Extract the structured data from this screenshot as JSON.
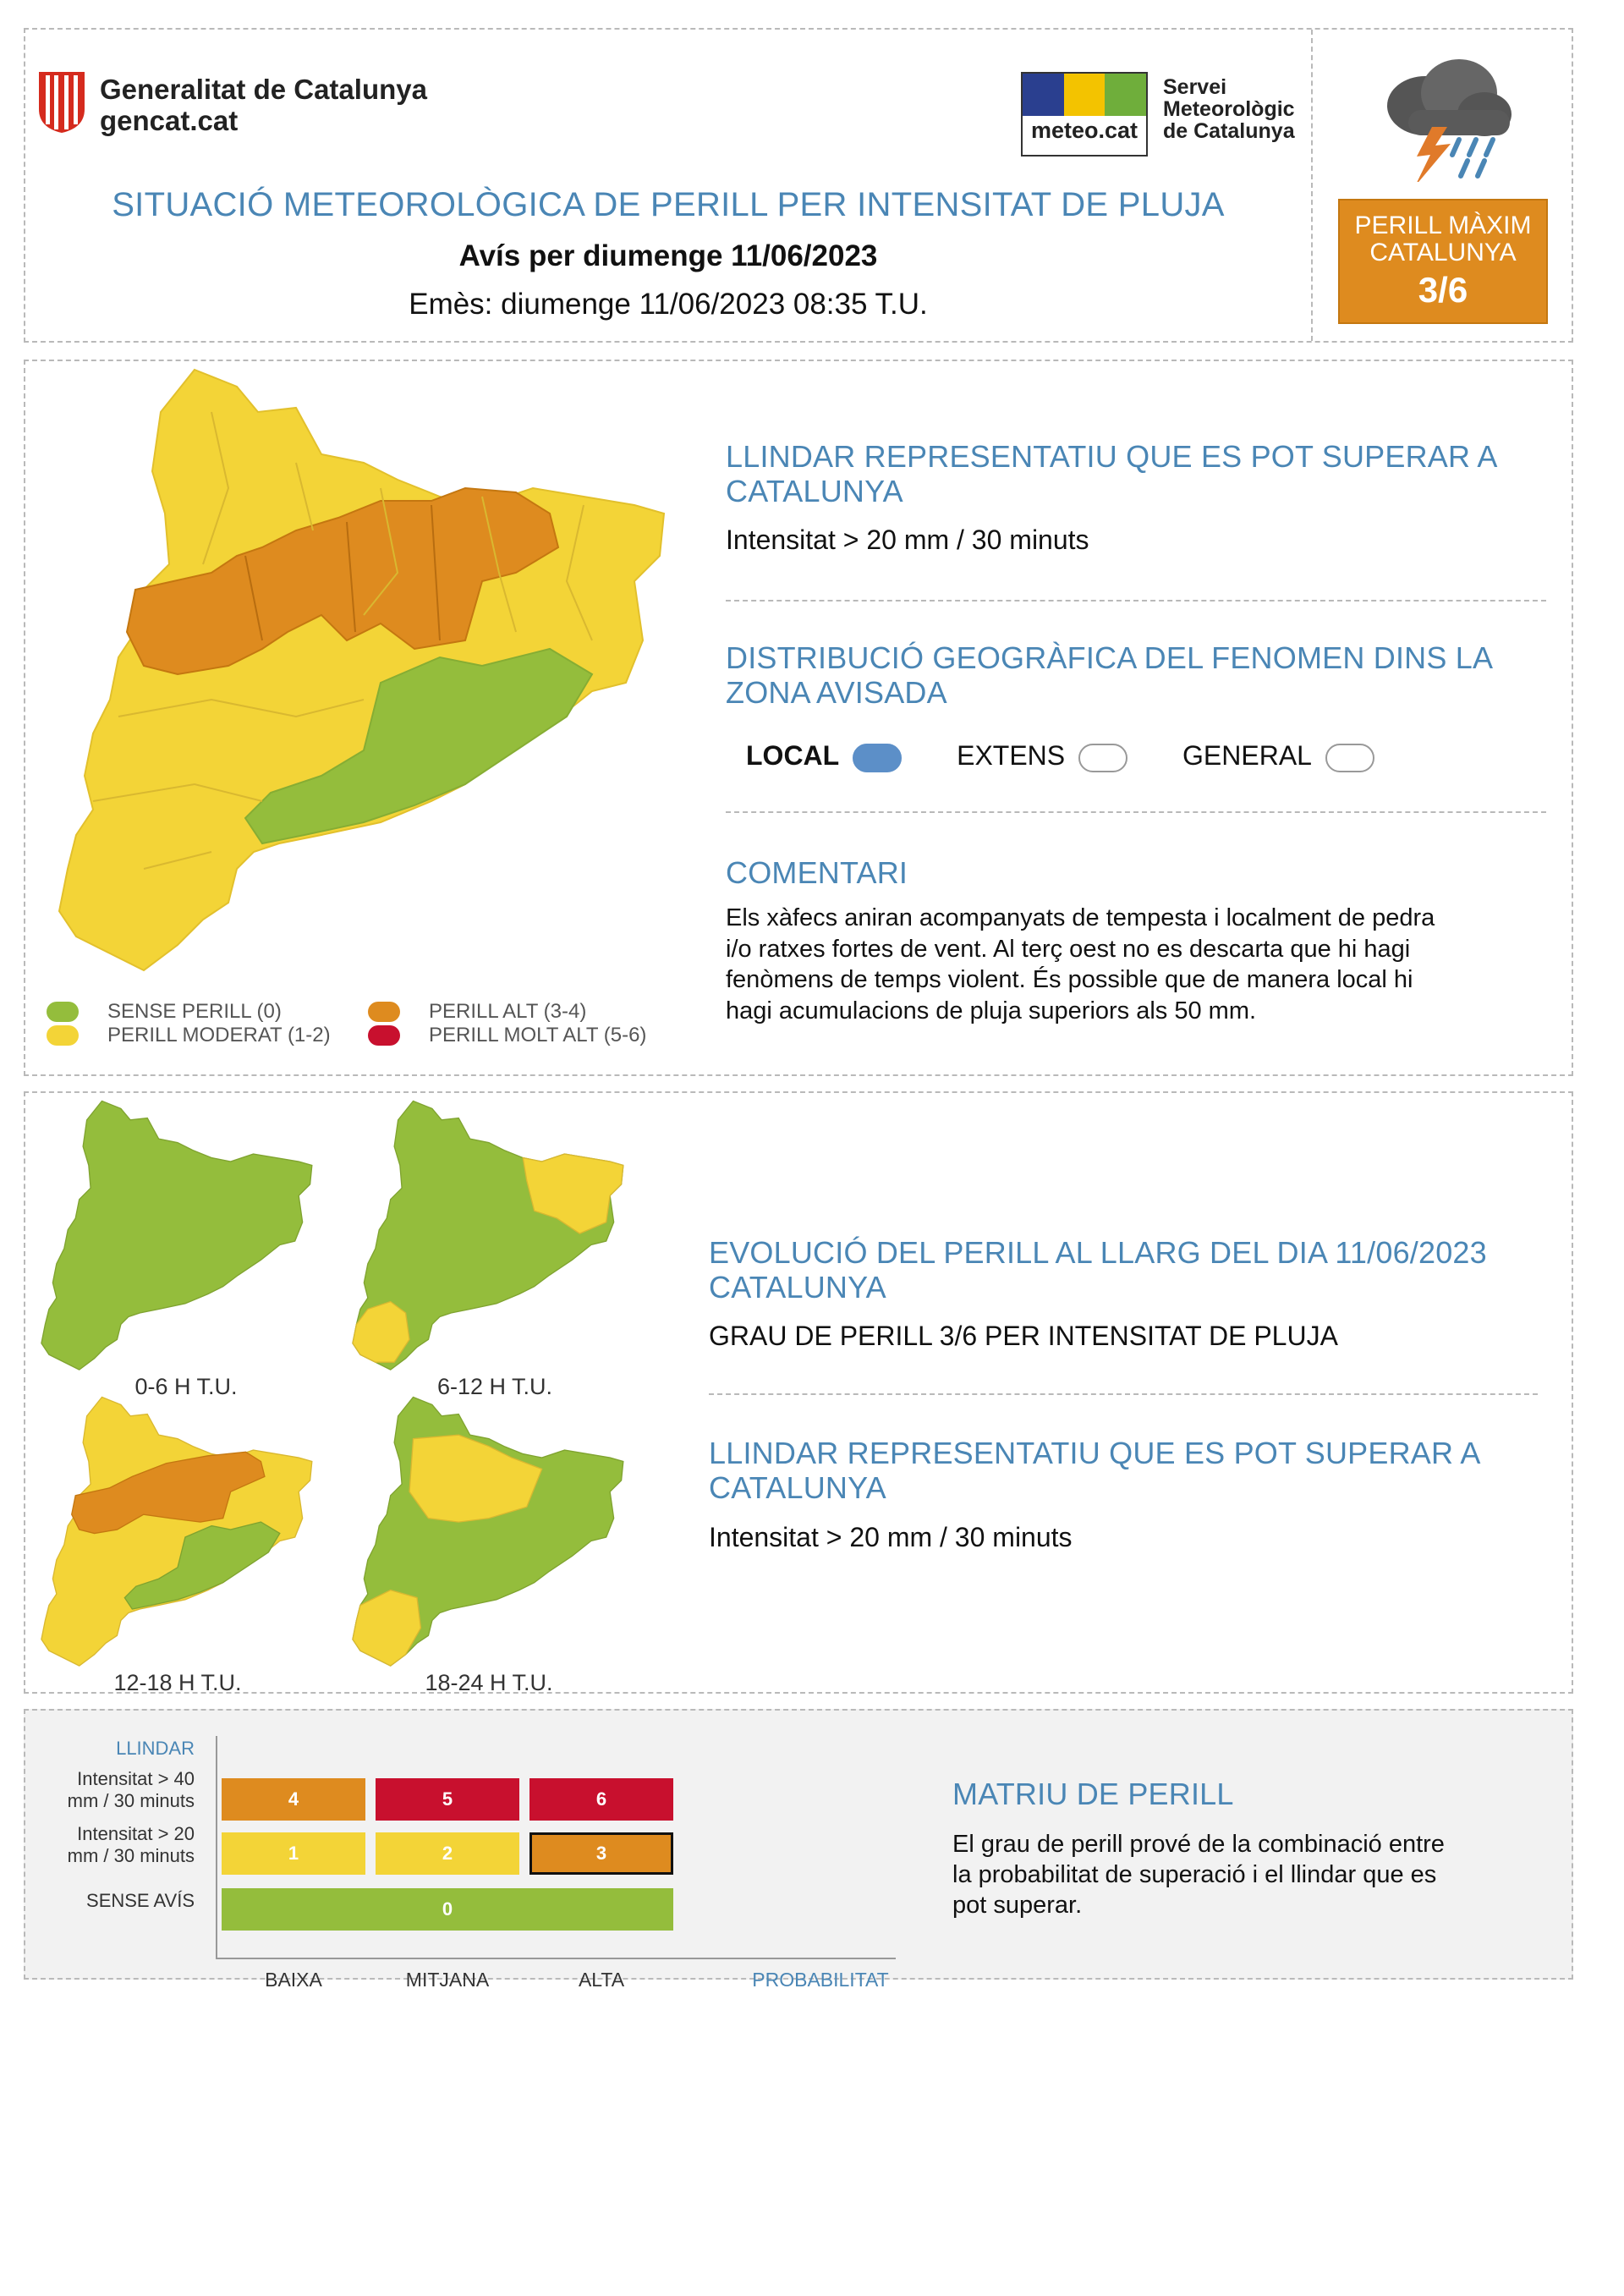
{
  "header": {
    "org_name": "Generalitat de Catalunya",
    "org_site": "gencat.cat",
    "meteo_logo_text": "meteo.cat",
    "service_name_lines": [
      "Servei",
      "Meteorològic",
      "de Catalunya"
    ],
    "title": "SITUACIÓ METEOROLÒGICA DE PERILL PER INTENSITAT DE PLUJA",
    "avis": "Avís per diumenge 11/06/2023",
    "emes": "Emès: diumenge 11/06/2023 08:35 T.U.",
    "perill_box": {
      "line1": "PERILL MÀXIM",
      "line2": "CATALUNYA",
      "level": "3/6"
    },
    "storm_icon": "storm-cloud-icon"
  },
  "threshold": {
    "title": "LLINDAR REPRESENTATIU QUE ES POT SUPERAR A CATALUNYA",
    "value": "Intensitat > 20 mm / 30 minuts"
  },
  "distribution": {
    "title": "DISTRIBUCIÓ GEOGRÀFICA DEL FENOMEN DINS LA ZONA AVISADA",
    "options": [
      {
        "label": "LOCAL",
        "selected": true
      },
      {
        "label": "EXTENS",
        "selected": false
      },
      {
        "label": "GENERAL",
        "selected": false
      }
    ]
  },
  "comment": {
    "title": "COMENTARI",
    "lines": [
      "Els xàfecs aniran acompanyats de tempesta i localment de pedra",
      "i/o ratxes fortes de vent. Al terç oest no es descarta que hi hagi",
      "fenòmens de temps violent. És possible que de manera local hi",
      "hagi acumulacions de pluja superiors als 50 mm."
    ]
  },
  "legend": [
    {
      "label": "SENSE PERILL (0)",
      "color": "#94bd3c"
    },
    {
      "label": "PERILL MODERAT (1-2)",
      "color": "#f3d437"
    },
    {
      "label": "PERILL ALT (3-4)",
      "color": "#de8b1f"
    },
    {
      "label": "PERILL MOLT ALT (5-6)",
      "color": "#c8102e"
    }
  ],
  "evolution": {
    "title": "EVOLUCIÓ DEL PERILL AL LLARG DEL DIA 11/06/2023 CATALUNYA",
    "grade": "GRAU DE PERILL 3/6 PER INTENSITAT DE PLUJA",
    "threshold_title": "LLINDAR REPRESENTATIU QUE ES POT SUPERAR A CATALUNYA",
    "threshold_value": "Intensitat > 20 mm / 30 minuts",
    "maps": [
      {
        "caption": "0-6 H T.U."
      },
      {
        "caption": "6-12 H T.U."
      },
      {
        "caption": "12-18 H T.U."
      },
      {
        "caption": "18-24 H T.U."
      }
    ]
  },
  "matrix": {
    "llindar_label": "LLINDAR",
    "rows": [
      {
        "label_lines": [
          "Intensitat > 40",
          "mm / 30 minuts"
        ],
        "cells": [
          "4",
          "5",
          "6"
        ]
      },
      {
        "label_lines": [
          "Intensitat > 20",
          "mm / 30 minuts"
        ],
        "cells": [
          "1",
          "2",
          "3"
        ]
      },
      {
        "label_lines": [
          "SENSE AVÍS"
        ],
        "cells": [
          "0"
        ]
      }
    ],
    "columns": [
      "BAIXA",
      "MITJANA",
      "ALTA"
    ],
    "prob_label": "PROBABILITAT",
    "highlight": "3",
    "title": "MATRIU DE PERILL",
    "description_lines": [
      "El grau de perill prové de la combinació entre",
      "la probabilitat de superació i el llindar que es",
      "pot superar."
    ]
  }
}
